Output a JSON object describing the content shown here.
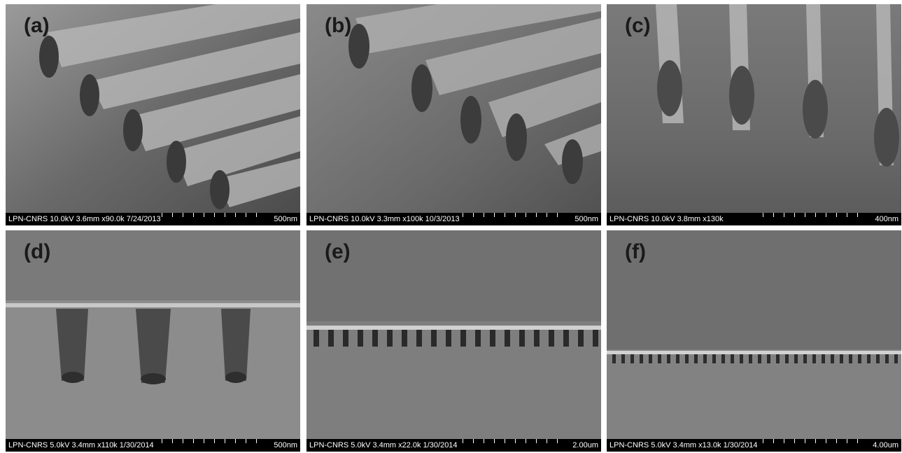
{
  "panels": [
    {
      "label": "(a)",
      "info": "LPN-CNRS 10.0kV 3.6mm x90.0k 7/24/2013",
      "scale": "500nm"
    },
    {
      "label": "(b)",
      "info": "LPN-CNRS 10.0kV 3.3mm x100k 10/3/2013",
      "scale": "500nm"
    },
    {
      "label": "(c)",
      "info": "LPN-CNRS 10.0kV 3.8mm x130k",
      "scale": "400nm"
    },
    {
      "label": "(d)",
      "info": "LPN-CNRS 5.0kV 3.4mm x110k 1/30/2014",
      "scale": "500nm"
    },
    {
      "label": "(e)",
      "info": "LPN-CNRS 5.0kV 3.4mm x22.0k 1/30/2014",
      "scale": "2.00um"
    },
    {
      "label": "(f)",
      "info": "LPN-CNRS 5.0kV 3.4mm x13.0k 1/30/2014",
      "scale": "4.00um"
    }
  ]
}
